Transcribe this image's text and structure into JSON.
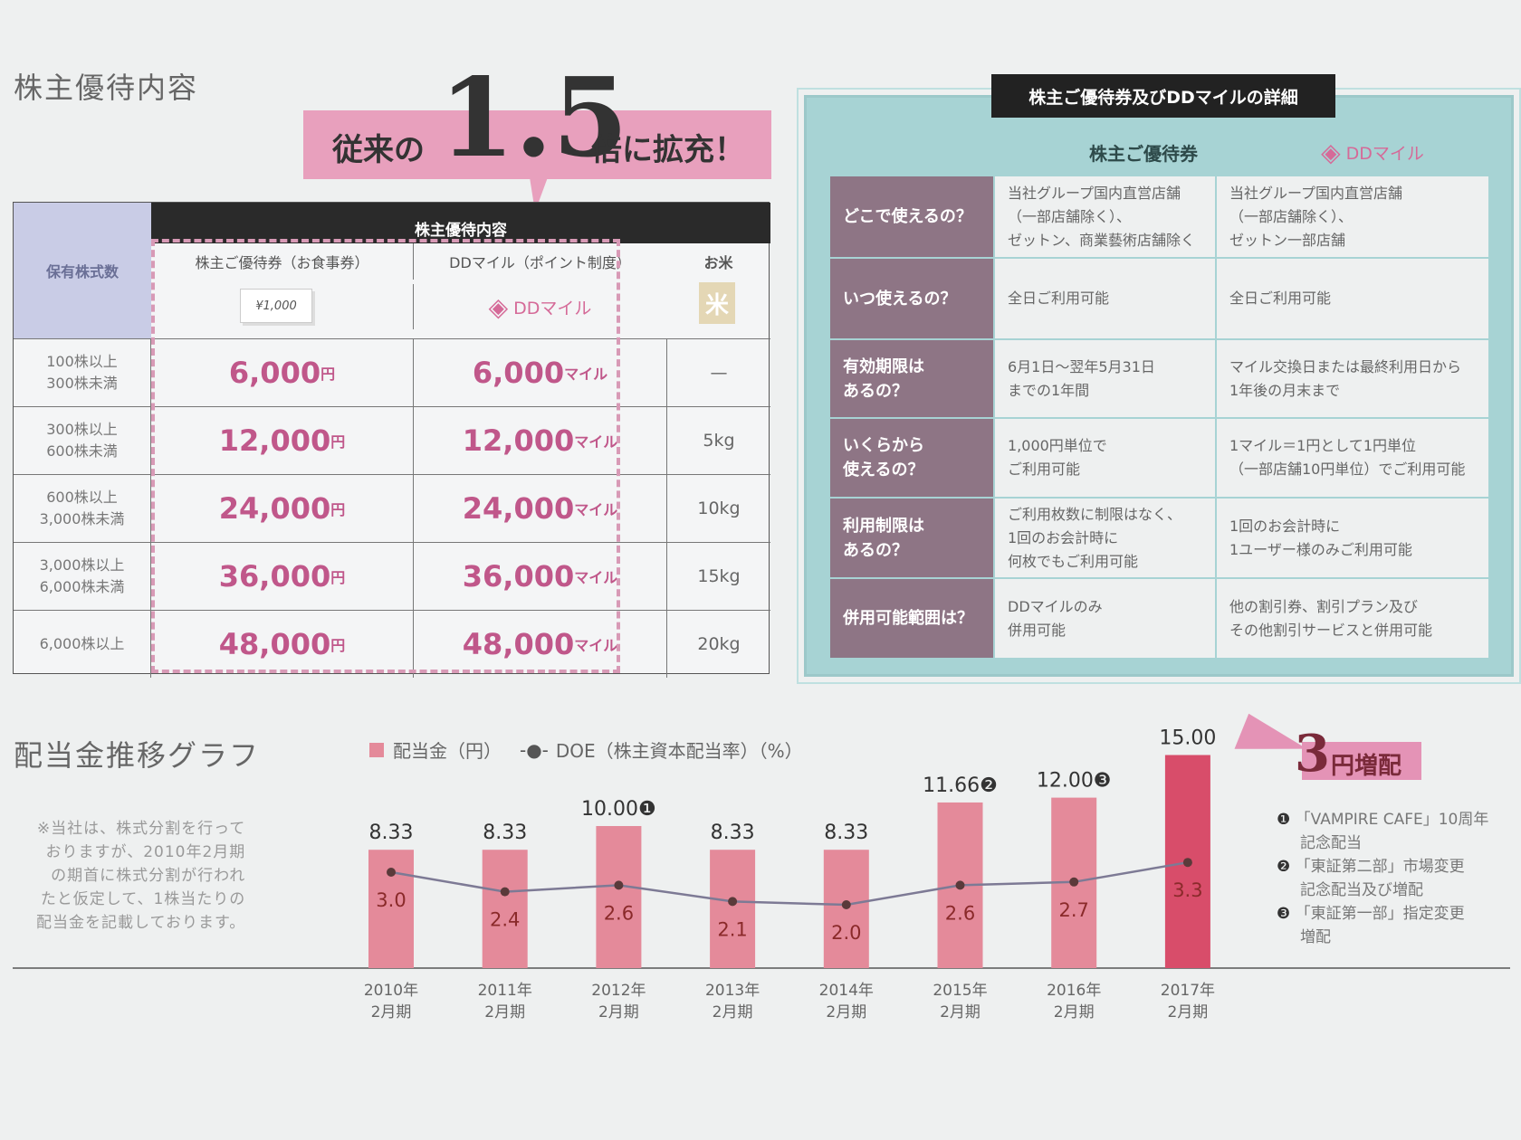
{
  "benefits": {
    "title": "株主優待内容",
    "banner": {
      "before": "従来の",
      "big": "1.5",
      "after": "倍に拡充！"
    },
    "table": {
      "header_bar": "株主優待内容",
      "col_shares": "保有株式数",
      "col_voucher": "株主ご優待券（お食事券）",
      "voucher_img": "¥1,000",
      "col_mile": "DDマイル（ポイント制度）",
      "mile_logo": "DDマイル",
      "col_rice": "お米",
      "rice_img": "米",
      "rows": [
        {
          "shares": [
            "100株以上",
            "300株未満"
          ],
          "voucher": "6,000",
          "voucher_unit": "円",
          "mile": "6,000",
          "mile_unit": "マイル",
          "rice": "—"
        },
        {
          "shares": [
            "300株以上",
            "600株未満"
          ],
          "voucher": "12,000",
          "voucher_unit": "円",
          "mile": "12,000",
          "mile_unit": "マイル",
          "rice": "5kg"
        },
        {
          "shares": [
            "600株以上",
            "3,000株未満"
          ],
          "voucher": "24,000",
          "voucher_unit": "円",
          "mile": "24,000",
          "mile_unit": "マイル",
          "rice": "10kg"
        },
        {
          "shares": [
            "3,000株以上",
            "6,000株未満"
          ],
          "voucher": "36,000",
          "voucher_unit": "円",
          "mile": "36,000",
          "mile_unit": "マイル",
          "rice": "15kg"
        },
        {
          "shares": [
            "6,000株以上",
            ""
          ],
          "voucher": "48,000",
          "voucher_unit": "円",
          "mile": "48,000",
          "mile_unit": "マイル",
          "rice": "20kg"
        }
      ]
    }
  },
  "details": {
    "title": "株主ご優待券及びDDマイルの詳細",
    "col1": "株主ご優待券",
    "col2_logo": "DDマイル",
    "rows": [
      {
        "q": [
          "どこで使えるの？"
        ],
        "a": [
          "当社グループ国内直営店舗",
          "（一部店舗除く）、",
          "ゼットン、商業藝術店舗除く"
        ],
        "b": [
          "当社グループ国内直営店舗",
          "（一部店舗除く）、",
          "ゼットン一部店舗"
        ]
      },
      {
        "q": [
          "いつ使えるの？"
        ],
        "a": [
          "全日ご利用可能"
        ],
        "b": [
          "全日ご利用可能"
        ]
      },
      {
        "q": [
          "有効期限は",
          "あるの？"
        ],
        "a": [
          "6月1日〜翌年5月31日",
          "までの1年間"
        ],
        "b": [
          "マイル交換日または最終利用日から",
          "1年後の月末まで"
        ]
      },
      {
        "q": [
          "いくらから",
          "使えるの？"
        ],
        "a": [
          "1,000円単位で",
          "ご利用可能"
        ],
        "b": [
          "1マイル＝1円として1円単位",
          "（一部店舗10円単位）でご利用可能"
        ]
      },
      {
        "q": [
          "利用制限は",
          "あるの？"
        ],
        "a": [
          "ご利用枚数に制限はなく、",
          "1回のお会計時に",
          "何枚でもご利用可能"
        ],
        "b": [
          "1回のお会計時に",
          "1ユーザー様のみご利用可能"
        ]
      },
      {
        "q": [
          "併用可能範囲は？"
        ],
        "a": [
          "DDマイルのみ",
          "併用可能"
        ],
        "b": [
          "他の割引券、割引プラン及び",
          "その他割引サービスと併用可能"
        ]
      }
    ]
  },
  "dividend": {
    "title": "配当金推移グラフ",
    "note": [
      "※当社は、株式分割を行って",
      "おりますが、2010年2月期",
      "の期首に株式分割が行われ",
      "たと仮定して、1株当たりの",
      "配当金を記載しております。"
    ],
    "callout": {
      "num": "3",
      "text": "円増配"
    },
    "footnotes": [
      {
        "mark": "❶",
        "lines": [
          "「VAMPIRE CAFE」10周年",
          "記念配当"
        ]
      },
      {
        "mark": "❷",
        "lines": [
          "「東証第二部」市場変更",
          "記念配当及び増配"
        ]
      },
      {
        "mark": "❸",
        "lines": [
          "「東証第一部」指定変更",
          "増配"
        ]
      }
    ]
  },
  "chart_data": {
    "type": "bar",
    "title": "配当金推移グラフ",
    "categories": [
      "2010年\n2月期",
      "2011年\n2月期",
      "2012年\n2月期",
      "2013年\n2月期",
      "2014年\n2月期",
      "2015年\n2月期",
      "2016年\n2月期",
      "2017年\n2月期"
    ],
    "series": [
      {
        "name": "配当金（円）",
        "type": "bar",
        "values": [
          8.33,
          8.33,
          10.0,
          8.33,
          8.33,
          11.66,
          12.0,
          15.0
        ],
        "labels": [
          "8.33",
          "8.33",
          "10.00",
          "8.33",
          "8.33",
          "11.66",
          "12.00",
          "15.00"
        ],
        "marks": [
          "",
          "",
          "❶",
          "",
          "",
          "❷",
          "❸",
          ""
        ],
        "color": "#e48a9a"
      },
      {
        "name": "DOE（株主資本配当率）（%）",
        "type": "line",
        "values": [
          3.0,
          2.4,
          2.6,
          2.1,
          2.0,
          2.6,
          2.7,
          3.3
        ],
        "labels": [
          "3.0",
          "2.4",
          "2.6",
          "2.1",
          "2.0",
          "2.6",
          "2.7",
          "3.3"
        ],
        "color": "#7d7a95"
      }
    ],
    "legend": "top",
    "grid": false,
    "colors": {
      "bar": "#e48a9a",
      "bar_last": "#d84d6a",
      "line": "#7d7a95"
    }
  }
}
